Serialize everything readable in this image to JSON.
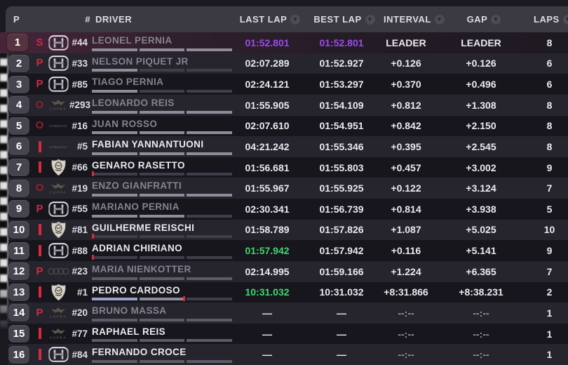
{
  "colors": {
    "header_bg": "#3b3a43",
    "row_dark": "#17161d",
    "row_light": "#26252e",
    "highlight": "#46243a",
    "purple": "#9d4bf0",
    "green": "#3fd96f",
    "red": "#cf2b42",
    "red_bright": "#d8293d",
    "dark_red": "#8f2130"
  },
  "icons": {
    "sort_arrow": "▼"
  },
  "table": {
    "columns": {
      "pos": "P",
      "num": "#",
      "driver": "DRIVER",
      "last_lap": "LAST LAP",
      "best_lap": "BEST LAP",
      "interval": "INTERVAL",
      "gap": "GAP",
      "laps": "LAPS"
    },
    "rows": [
      {
        "pos": "1",
        "status": "S",
        "team": "honda",
        "num": "#44",
        "driver": "LEONEL PERNIA",
        "name_dim": true,
        "last": "01:52.801",
        "last_color": "purple",
        "best": "01:52.801",
        "best_color": "purple",
        "interval": "LEADER",
        "gap": "LEADER",
        "laps": "8",
        "sectors": [
          "done",
          "done",
          "done"
        ],
        "tick": null,
        "highlight": true
      },
      {
        "pos": "2",
        "status": "P",
        "team": "honda",
        "num": "#33",
        "driver": "NELSON PIQUET JR",
        "name_dim": true,
        "last": "02:07.289",
        "last_color": "",
        "best": "01:52.927",
        "best_color": "",
        "interval": "+0.126",
        "gap": "+0.126",
        "laps": "6",
        "sectors": [
          "done",
          "dim",
          "dim"
        ],
        "tick": null,
        "highlight": false
      },
      {
        "pos": "3",
        "status": "P",
        "team": "honda",
        "num": "#85",
        "driver": "TIAGO PERNIA",
        "name_dim": true,
        "last": "02:24.121",
        "last_color": "",
        "best": "01:53.297",
        "best_color": "",
        "interval": "+0.370",
        "gap": "+0.496",
        "laps": "6",
        "sectors": [
          "done",
          "dim",
          "dim"
        ],
        "tick": null,
        "highlight": false
      },
      {
        "pos": "4",
        "status": "O",
        "team": "cupra",
        "num": "#293",
        "driver": "LEONARDO REIS",
        "name_dim": true,
        "last": "01:55.905",
        "last_color": "",
        "best": "01:54.109",
        "best_color": "",
        "interval": "+0.812",
        "gap": "+1.308",
        "laps": "8",
        "sectors": [
          "done",
          "done",
          "done"
        ],
        "tick": null,
        "highlight": false
      },
      {
        "pos": "5",
        "status": "O",
        "team": "lynk-co",
        "num": "#16",
        "driver": "JUAN ROSSO",
        "name_dim": true,
        "last": "02:07.610",
        "last_color": "",
        "best": "01:54.951",
        "best_color": "",
        "interval": "+0.842",
        "gap": "+2.150",
        "laps": "8",
        "sectors": [
          "done",
          "done",
          "done"
        ],
        "tick": null,
        "highlight": false
      },
      {
        "pos": "6",
        "status": "on-track",
        "team": "lynk-co",
        "num": "#5",
        "driver": "FABIAN YANNANTUONI",
        "name_dim": false,
        "last": "04:21.242",
        "last_color": "",
        "best": "01:55.346",
        "best_color": "",
        "interval": "+0.395",
        "gap": "+2.545",
        "laps": "8",
        "sectors": [
          "done",
          "done",
          "done"
        ],
        "tick": null,
        "highlight": false
      },
      {
        "pos": "7",
        "status": "on-track",
        "team": "crest",
        "num": "#66",
        "driver": "GENARO RASETTO",
        "name_dim": false,
        "last": "01:56.681",
        "last_color": "",
        "best": "01:55.803",
        "best_color": "",
        "interval": "+0.457",
        "gap": "+3.002",
        "laps": "9",
        "sectors": [
          "dim",
          "dim",
          "dim"
        ],
        "tick": 0,
        "highlight": false
      },
      {
        "pos": "8",
        "status": "O",
        "team": "cupra",
        "num": "#19",
        "driver": "ENZO GIANFRATTI",
        "name_dim": true,
        "last": "01:55.967",
        "last_color": "",
        "best": "01:55.925",
        "best_color": "",
        "interval": "+0.122",
        "gap": "+3.124",
        "laps": "7",
        "sectors": [
          "done",
          "done",
          "done"
        ],
        "tick": null,
        "highlight": false
      },
      {
        "pos": "9",
        "status": "P",
        "team": "honda",
        "num": "#55",
        "driver": "MARIANO PERNIA",
        "name_dim": true,
        "last": "02:30.341",
        "last_color": "",
        "best": "01:56.739",
        "best_color": "",
        "interval": "+0.814",
        "gap": "+3.938",
        "laps": "5",
        "sectors": [
          "done",
          "done",
          "dim"
        ],
        "tick": null,
        "highlight": false
      },
      {
        "pos": "10",
        "status": "on-track",
        "team": "crest",
        "num": "#81",
        "driver": "GUILHERME REISCHI",
        "name_dim": false,
        "last": "01:58.789",
        "last_color": "",
        "best": "01:57.826",
        "best_color": "",
        "interval": "+1.087",
        "gap": "+5.025",
        "laps": "10",
        "sectors": [
          "dim",
          "dim",
          "dim"
        ],
        "tick": 0,
        "highlight": false
      },
      {
        "pos": "11",
        "status": "on-track",
        "team": "honda",
        "num": "#88",
        "driver": "ADRIAN CHIRIANO",
        "name_dim": false,
        "last": "01:57.942",
        "last_color": "green",
        "best": "01:57.942",
        "best_color": "",
        "interval": "+0.116",
        "gap": "+5.141",
        "laps": "9",
        "sectors": [
          "dim",
          "dim",
          "dim"
        ],
        "tick": 0,
        "highlight": false
      },
      {
        "pos": "12",
        "status": "P",
        "team": "audi",
        "num": "#23",
        "driver": "MARIA NIENKOTTER",
        "name_dim": true,
        "last": "02:14.995",
        "last_color": "",
        "best": "01:59.166",
        "best_color": "",
        "interval": "+1.224",
        "gap": "+6.365",
        "laps": "7",
        "sectors": [
          "mid",
          "mid",
          "mid"
        ],
        "tick": null,
        "highlight": false
      },
      {
        "pos": "13",
        "status": "on-track",
        "team": "crest",
        "num": "#1",
        "driver": "PEDRO CARDOSO",
        "name_dim": false,
        "last": "10:31.032",
        "last_color": "green",
        "best": "10:31.032",
        "best_color": "",
        "interval": "+8:31.866",
        "gap": "+8:38.231",
        "laps": "2",
        "sectors": [
          "best",
          "done",
          "dim"
        ],
        "tick": 65,
        "highlight": false
      },
      {
        "pos": "14",
        "status": "P",
        "team": "cupra",
        "num": "#20",
        "driver": "BRUNO MASSA",
        "name_dim": true,
        "last": "—",
        "last_color": "",
        "best": "—",
        "best_color": "",
        "interval": "--:--",
        "gap": "--:--",
        "laps": "1",
        "sectors": [
          "mid",
          "mid",
          "mid"
        ],
        "tick": null,
        "highlight": false
      },
      {
        "pos": "15",
        "status": "on-track",
        "team": "cupra",
        "num": "#77",
        "driver": "RAPHAEL REIS",
        "name_dim": false,
        "last": "—",
        "last_color": "",
        "best": "—",
        "best_color": "",
        "interval": "--:--",
        "gap": "--:--",
        "laps": "1",
        "sectors": [
          "mid",
          "mid",
          "mid"
        ],
        "tick": null,
        "highlight": false
      },
      {
        "pos": "16",
        "status": "on-track",
        "team": "honda",
        "num": "#84",
        "driver": "FERNANDO CROCE",
        "name_dim": false,
        "last": "—",
        "last_color": "",
        "best": "—",
        "best_color": "",
        "interval": "--:--",
        "gap": "--:--",
        "laps": "1",
        "sectors": [
          "mid",
          "mid",
          "mid"
        ],
        "tick": null,
        "highlight": false
      }
    ]
  }
}
